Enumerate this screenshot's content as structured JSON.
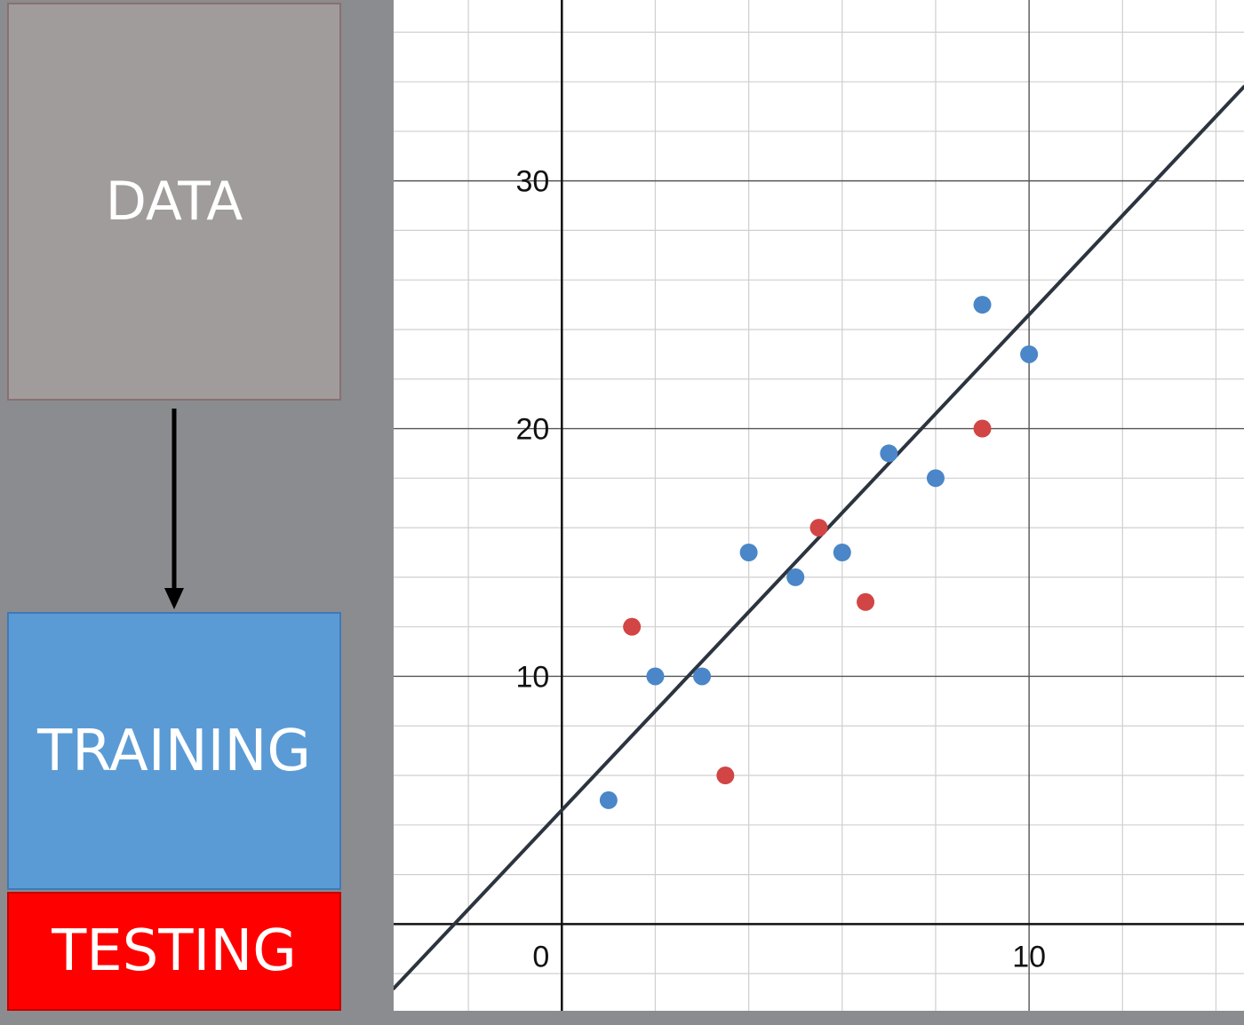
{
  "diagram": {
    "data_label": "DATA",
    "training_label": "TRAINING",
    "testing_label": "TESTING"
  },
  "colors": {
    "background": "#8a8c8f",
    "data_box": "#a09c9c",
    "training": "#5b9bd5",
    "testing": "#ff0000",
    "training_points": "#4a86c8",
    "testing_points": "#d24545",
    "fit_line": "#2c3440"
  },
  "chart_data": {
    "type": "scatter",
    "xlim": [
      -3.6,
      14.6
    ],
    "ylim": [
      -3.5,
      37.3
    ],
    "grid": true,
    "x_ticks": [
      0,
      10
    ],
    "y_ticks": [
      10,
      20,
      30
    ],
    "x_tick_labels": [
      "0",
      "10"
    ],
    "y_tick_labels": [
      "10",
      "20",
      "30"
    ],
    "series": [
      {
        "role": "training",
        "color": "#4a86c8",
        "points": [
          [
            1,
            5
          ],
          [
            2,
            10
          ],
          [
            3,
            10
          ],
          [
            4,
            15
          ],
          [
            5,
            14
          ],
          [
            6,
            15
          ],
          [
            7,
            19
          ],
          [
            8,
            18
          ],
          [
            9,
            25
          ],
          [
            10,
            23
          ]
        ]
      },
      {
        "role": "testing",
        "color": "#d24545",
        "points": [
          [
            1.5,
            12
          ],
          [
            3.5,
            6
          ],
          [
            5.5,
            16
          ],
          [
            6.5,
            13
          ],
          [
            9,
            20
          ]
        ]
      }
    ],
    "fit_line": {
      "slope": 2.0,
      "intercept": 4.6
    }
  }
}
